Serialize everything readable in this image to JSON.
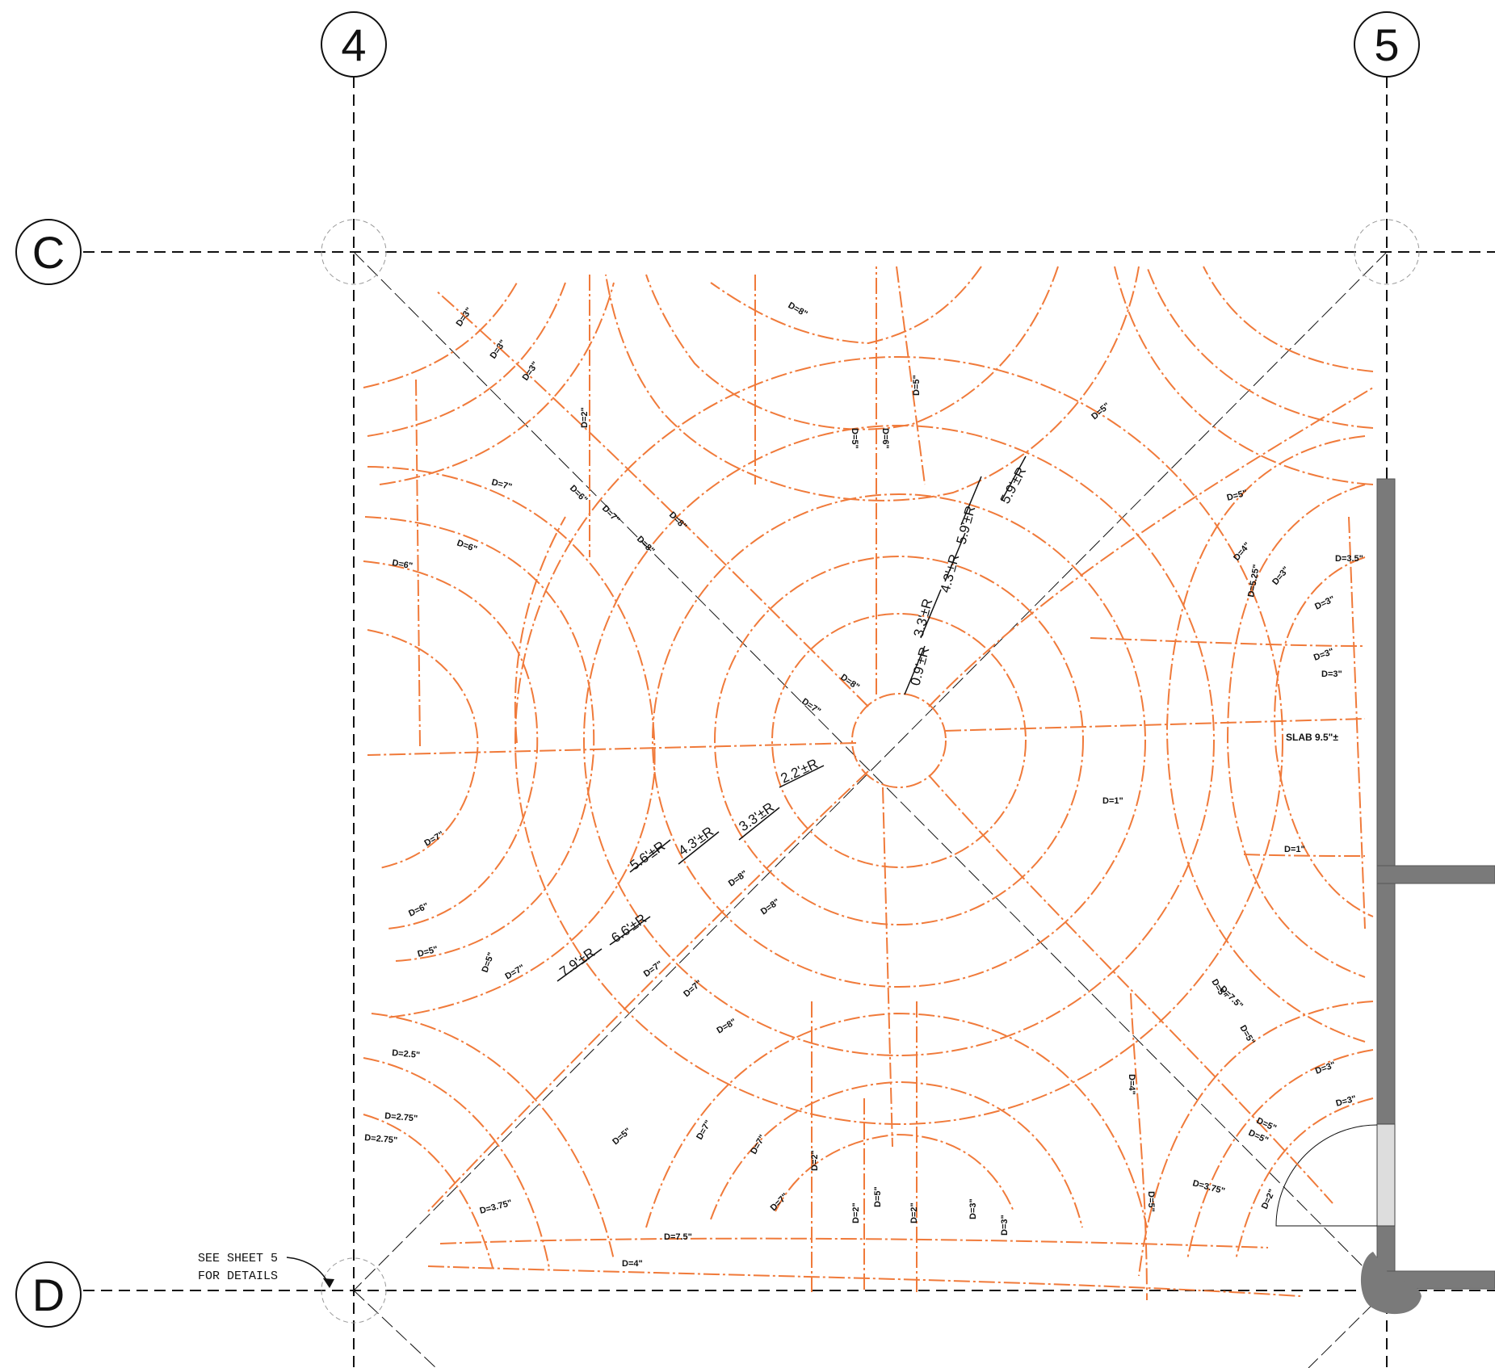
{
  "grid": {
    "columns": [
      "4",
      "5"
    ],
    "rows": [
      "C",
      "D"
    ]
  },
  "note": {
    "line1": "SEE SHEET 5",
    "line2": "FOR DETAILS"
  },
  "slab_label": "SLAB 9.5\"±",
  "radius_dims": [
    "0.9'±R",
    "3.3'±R",
    "4.3'±R",
    "5.9'±R",
    "5.9'±R",
    "2.2'±R",
    "3.3'±R",
    "4.3'±R",
    "5.6'±R",
    "6.6'±R",
    "7.9'±R"
  ],
  "depth_labels": [
    "D=3\"",
    "D=3\"",
    "D=3\"",
    "D=2\"",
    "D=8\"",
    "D=5\"",
    "D=6\"",
    "D=5\"",
    "D=5\"",
    "D=7\"",
    "D=6\"",
    "D=7\"",
    "D=8\"",
    "D=8\"",
    "D=6\"",
    "D=6\"",
    "D=5\"",
    "D=4\"",
    "D=5.25\"",
    "D=3\"",
    "D=3.5\"",
    "D=3\"",
    "D=3\"",
    "D=3\"",
    "D=8\"",
    "D=7\"",
    "D=1\"",
    "D=1\"",
    "D=7\"",
    "D=6\"",
    "D=5\"",
    "D=5\"",
    "D=7\"",
    "D=8\"",
    "D=8\"",
    "D=7\"",
    "D=7\"",
    "D=8\"",
    "D=5\"",
    "D=7.5\"",
    "D=5\"",
    "D=3\"",
    "D=3\"",
    "D=5\"",
    "D=5\"",
    "D=4\"",
    "D=2.5\"",
    "D=2.75\"",
    "D=2.75\"",
    "D=3.75\"",
    "D=5\"",
    "D=7\"",
    "D=7\"",
    "D=2\"",
    "D=7\"",
    "D=2\"",
    "D=5\"",
    "D=2\"",
    "D=3\"",
    "D=3\"",
    "D=5\"",
    "D=3.75\"",
    "D=2\"",
    "D=7.5\"",
    "D=4\""
  ],
  "colors": {
    "contour": "#f07a3a",
    "gridline": "#111111",
    "wall": "#7a7a7a"
  }
}
